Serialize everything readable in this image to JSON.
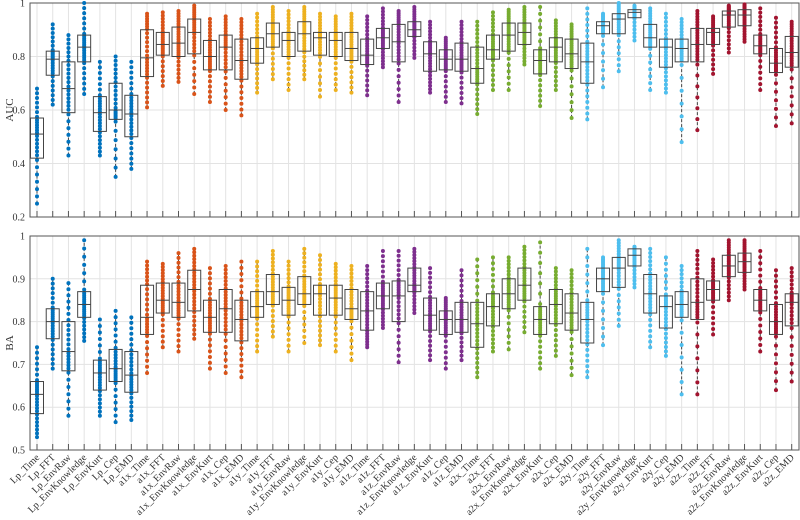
{
  "chart_data": {
    "type": "box",
    "categories": [
      "Lp_Time",
      "Lp_FFT",
      "Lp_EnvRaw",
      "Lp_EnvKnowledge",
      "Lp_EnvKurt",
      "Lp_Cep",
      "Lp_EMD",
      "a1x_Time",
      "a1x_FFT",
      "a1x_EnvRaw",
      "a1x_EnvKnowledge",
      "a1x_EnvKurt",
      "a1x_Cep",
      "a1x_EMD",
      "a1y_Time",
      "a1y_FFT",
      "a1y_EnvRaw",
      "a1y_EnvKnowledge",
      "a1y_EnvKurt",
      "a1y_Cep",
      "a1y_EMD",
      "a1z_Time",
      "a1z_FFT",
      "a1z_EnvRaw",
      "a1z_EnvKnowledge",
      "a1z_EnvKurt",
      "a1z_Cep",
      "a1z_EMD",
      "a2x_Time",
      "a2x_FFT",
      "a2x_EnvRaw",
      "a2x_EnvKnowledge",
      "a2x_EnvKurt",
      "a2x_Cep",
      "a2x_EMD",
      "a2y_Time",
      "a2y_FFT",
      "a2y_EnvRaw",
      "a2y_EnvKnowledge",
      "a2y_EnvKurt",
      "a2y_Cep",
      "a2y_EMD",
      "a2z_Time",
      "a2z_FFT",
      "a2z_EnvRaw",
      "a2z_EnvKnowledge",
      "a2z_EnvKurt",
      "a2z_Cep",
      "a2z_EMD"
    ],
    "group_colors": [
      "#0072BD",
      "#D95319",
      "#EDB120",
      "#7E2F8E",
      "#77AC30",
      "#4DBEEE",
      "#A2142F"
    ],
    "stat_order": [
      "min",
      "q1",
      "median",
      "q3",
      "max"
    ],
    "grid": true,
    "panels": [
      {
        "ylabel": "AUC",
        "ylim": [
          0.2,
          1
        ],
        "yticks": [
          "0.2",
          "0.4",
          "0.6",
          "0.8",
          "1"
        ],
        "show_xticklabels": false,
        "stats": [
          [
            0.25,
            0.42,
            0.51,
            0.57,
            0.68
          ],
          [
            0.62,
            0.73,
            0.79,
            0.82,
            0.92
          ],
          [
            0.43,
            0.59,
            0.68,
            0.78,
            0.88
          ],
          [
            0.66,
            0.78,
            0.835,
            0.88,
            1.0
          ],
          [
            0.43,
            0.52,
            0.59,
            0.65,
            0.78
          ],
          [
            0.35,
            0.565,
            0.6,
            0.7,
            0.8
          ],
          [
            0.38,
            0.5,
            0.585,
            0.655,
            0.78
          ],
          [
            0.61,
            0.725,
            0.795,
            0.9,
            0.96
          ],
          [
            0.69,
            0.805,
            0.845,
            0.89,
            0.965
          ],
          [
            0.705,
            0.8,
            0.85,
            0.91,
            0.97
          ],
          [
            0.66,
            0.81,
            0.89,
            0.94,
            0.99
          ],
          [
            0.63,
            0.75,
            0.8,
            0.86,
            0.94
          ],
          [
            0.6,
            0.75,
            0.835,
            0.88,
            0.95
          ],
          [
            0.58,
            0.715,
            0.785,
            0.865,
            0.94
          ],
          [
            0.665,
            0.775,
            0.83,
            0.87,
            0.96
          ],
          [
            0.715,
            0.835,
            0.885,
            0.925,
            0.985
          ],
          [
            0.675,
            0.8,
            0.86,
            0.89,
            0.97
          ],
          [
            0.715,
            0.82,
            0.885,
            0.93,
            0.985
          ],
          [
            0.65,
            0.805,
            0.87,
            0.89,
            0.96
          ],
          [
            0.675,
            0.8,
            0.86,
            0.89,
            0.95
          ],
          [
            0.665,
            0.785,
            0.83,
            0.89,
            0.96
          ],
          [
            0.655,
            0.77,
            0.805,
            0.865,
            0.95
          ],
          [
            0.76,
            0.83,
            0.87,
            0.905,
            0.98
          ],
          [
            0.63,
            0.78,
            0.855,
            0.92,
            0.97
          ],
          [
            0.795,
            0.875,
            0.9,
            0.93,
            0.985
          ],
          [
            0.665,
            0.745,
            0.81,
            0.855,
            0.93
          ],
          [
            0.63,
            0.75,
            0.79,
            0.825,
            0.87
          ],
          [
            0.625,
            0.745,
            0.79,
            0.85,
            0.93
          ],
          [
            0.585,
            0.7,
            0.755,
            0.835,
            0.93
          ],
          [
            0.675,
            0.79,
            0.825,
            0.88,
            0.965
          ],
          [
            0.675,
            0.82,
            0.88,
            0.925,
            0.975
          ],
          [
            0.77,
            0.845,
            0.89,
            0.925,
            0.985
          ],
          [
            0.615,
            0.735,
            0.785,
            0.825,
            0.985
          ],
          [
            0.675,
            0.78,
            0.835,
            0.87,
            0.935
          ],
          [
            0.57,
            0.755,
            0.81,
            0.865,
            0.92
          ],
          [
            0.565,
            0.7,
            0.78,
            0.85,
            0.98
          ],
          [
            0.685,
            0.885,
            0.915,
            0.93,
            0.96
          ],
          [
            0.745,
            0.885,
            0.94,
            0.96,
            1.0
          ],
          [
            0.86,
            0.945,
            0.965,
            0.975,
            0.99
          ],
          [
            0.675,
            0.835,
            0.87,
            0.92,
            0.98
          ],
          [
            0.665,
            0.76,
            0.835,
            0.865,
            0.96
          ],
          [
            0.48,
            0.78,
            0.83,
            0.865,
            0.94
          ],
          [
            0.525,
            0.78,
            0.845,
            0.905,
            0.97
          ],
          [
            0.735,
            0.845,
            0.89,
            0.905,
            0.95
          ],
          [
            0.815,
            0.91,
            0.955,
            0.97,
            0.99
          ],
          [
            0.855,
            0.915,
            0.955,
            0.975,
            0.995
          ],
          [
            0.675,
            0.81,
            0.84,
            0.88,
            0.98
          ],
          [
            0.54,
            0.74,
            0.775,
            0.83,
            0.945
          ],
          [
            0.55,
            0.76,
            0.815,
            0.875,
            0.93
          ]
        ]
      },
      {
        "ylabel": "BA",
        "ylim": [
          0.5,
          1
        ],
        "yticks": [
          "0.5",
          "0.6",
          "0.7",
          "0.8",
          "0.9",
          "1"
        ],
        "show_xticklabels": true,
        "stats": [
          [
            0.53,
            0.585,
            0.63,
            0.66,
            0.74
          ],
          [
            0.69,
            0.76,
            0.8,
            0.83,
            0.9
          ],
          [
            0.58,
            0.685,
            0.73,
            0.8,
            0.89
          ],
          [
            0.755,
            0.81,
            0.84,
            0.87,
            0.99
          ],
          [
            0.58,
            0.64,
            0.68,
            0.71,
            0.805
          ],
          [
            0.565,
            0.66,
            0.69,
            0.735,
            0.825
          ],
          [
            0.57,
            0.635,
            0.675,
            0.73,
            0.81
          ],
          [
            0.68,
            0.77,
            0.81,
            0.885,
            0.94
          ],
          [
            0.74,
            0.82,
            0.85,
            0.89,
            0.935
          ],
          [
            0.73,
            0.81,
            0.845,
            0.89,
            0.96
          ],
          [
            0.76,
            0.825,
            0.875,
            0.92,
            0.97
          ],
          [
            0.69,
            0.775,
            0.81,
            0.85,
            0.925
          ],
          [
            0.68,
            0.775,
            0.83,
            0.875,
            0.93
          ],
          [
            0.67,
            0.755,
            0.805,
            0.85,
            0.94
          ],
          [
            0.73,
            0.81,
            0.835,
            0.87,
            0.94
          ],
          [
            0.765,
            0.84,
            0.87,
            0.91,
            0.965
          ],
          [
            0.73,
            0.815,
            0.85,
            0.88,
            0.94
          ],
          [
            0.75,
            0.84,
            0.865,
            0.905,
            0.97
          ],
          [
            0.745,
            0.815,
            0.865,
            0.885,
            0.955
          ],
          [
            0.73,
            0.815,
            0.855,
            0.885,
            0.935
          ],
          [
            0.71,
            0.805,
            0.83,
            0.875,
            0.93
          ],
          [
            0.74,
            0.78,
            0.825,
            0.87,
            0.93
          ],
          [
            0.785,
            0.83,
            0.86,
            0.89,
            0.965
          ],
          [
            0.705,
            0.8,
            0.86,
            0.895,
            0.965
          ],
          [
            0.82,
            0.87,
            0.885,
            0.925,
            0.97
          ],
          [
            0.71,
            0.78,
            0.815,
            0.855,
            0.925
          ],
          [
            0.69,
            0.77,
            0.805,
            0.825,
            0.855
          ],
          [
            0.71,
            0.775,
            0.805,
            0.845,
            0.92
          ],
          [
            0.67,
            0.74,
            0.795,
            0.845,
            0.945
          ],
          [
            0.73,
            0.79,
            0.835,
            0.865,
            0.95
          ],
          [
            0.735,
            0.83,
            0.865,
            0.9,
            0.95
          ],
          [
            0.775,
            0.85,
            0.885,
            0.925,
            0.975
          ],
          [
            0.69,
            0.77,
            0.805,
            0.835,
            0.985
          ],
          [
            0.72,
            0.795,
            0.84,
            0.875,
            0.925
          ],
          [
            0.675,
            0.78,
            0.82,
            0.865,
            0.92
          ],
          [
            0.67,
            0.75,
            0.805,
            0.845,
            0.97
          ],
          [
            0.745,
            0.87,
            0.9,
            0.925,
            0.95
          ],
          [
            0.79,
            0.88,
            0.925,
            0.95,
            0.99
          ],
          [
            0.88,
            0.93,
            0.955,
            0.97,
            0.975
          ],
          [
            0.74,
            0.82,
            0.865,
            0.91,
            0.97
          ],
          [
            0.72,
            0.785,
            0.835,
            0.86,
            0.95
          ],
          [
            0.63,
            0.81,
            0.84,
            0.87,
            0.93
          ],
          [
            0.63,
            0.805,
            0.845,
            0.9,
            0.965
          ],
          [
            0.77,
            0.85,
            0.875,
            0.895,
            0.945
          ],
          [
            0.85,
            0.905,
            0.93,
            0.955,
            0.99
          ],
          [
            0.875,
            0.915,
            0.94,
            0.96,
            0.99
          ],
          [
            0.73,
            0.825,
            0.85,
            0.875,
            0.965
          ],
          [
            0.64,
            0.77,
            0.8,
            0.84,
            0.92
          ],
          [
            0.66,
            0.79,
            0.845,
            0.865,
            0.925
          ]
        ]
      }
    ]
  }
}
